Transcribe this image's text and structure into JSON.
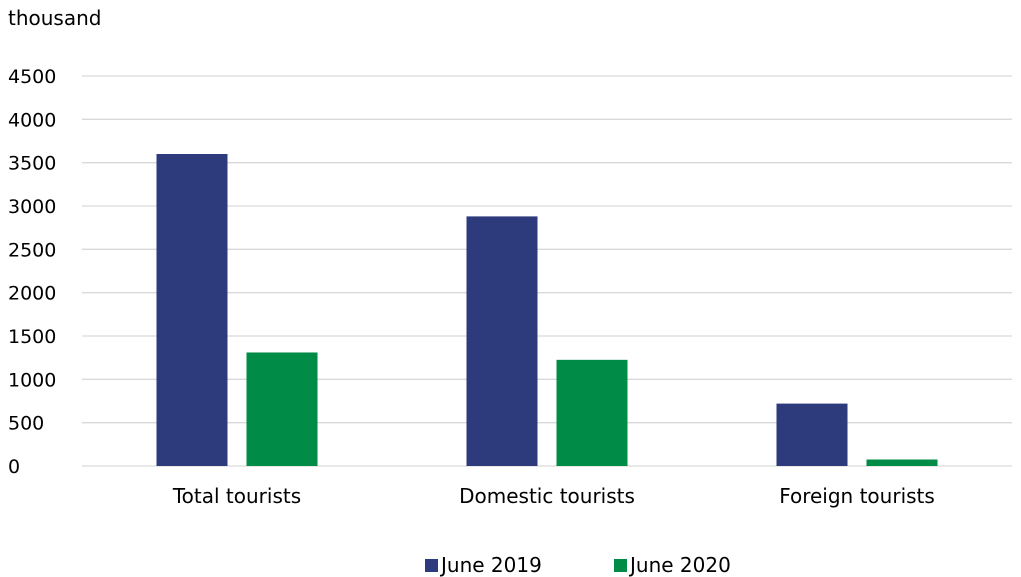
{
  "chart_data": {
    "type": "bar",
    "unit_label": "thousand",
    "categories": [
      "Total tourists",
      "Domestic tourists",
      "Foreign tourists"
    ],
    "series": [
      {
        "name": "June 2019",
        "color": "#2d3a7c",
        "values": [
          3600,
          2880,
          720
        ]
      },
      {
        "name": "June 2020",
        "color": "#008b46",
        "values": [
          1310,
          1225,
          75
        ]
      }
    ],
    "ylim": [
      0,
      4500
    ],
    "yticks": [
      0,
      500,
      1000,
      1500,
      2000,
      2500,
      3000,
      3500,
      4000,
      4500
    ],
    "grid": true,
    "legend_position": "bottom"
  }
}
